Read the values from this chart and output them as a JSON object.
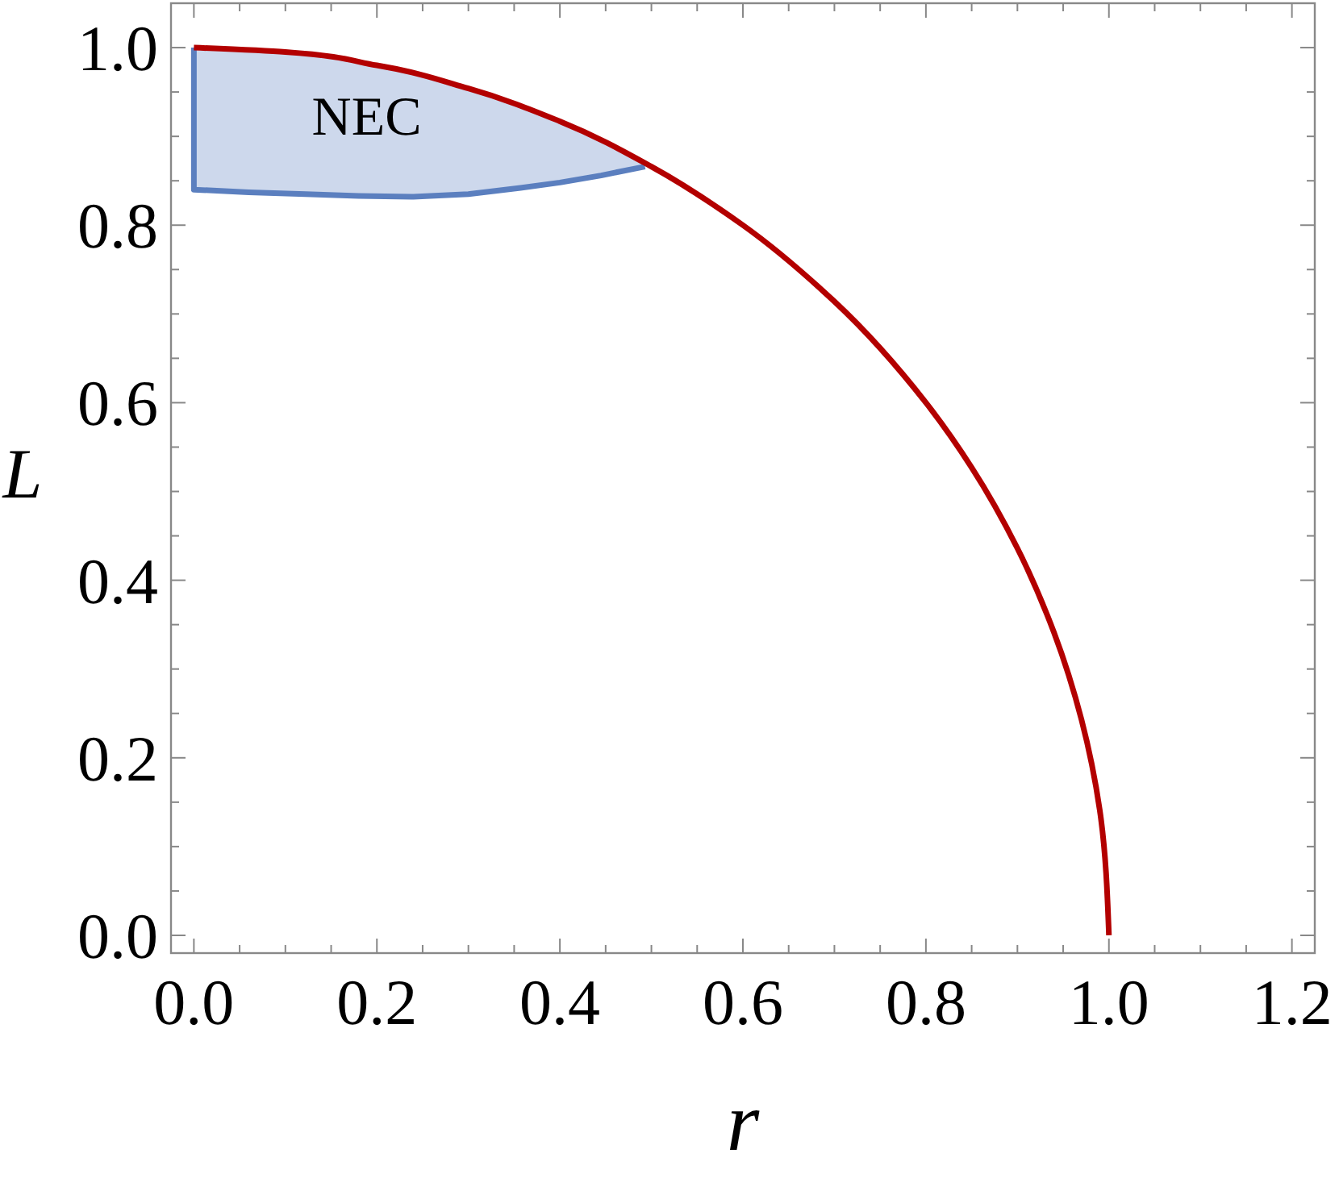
{
  "chart_data": {
    "type": "line",
    "xlabel": "r",
    "ylabel": "L",
    "xlim": [
      -0.025,
      1.225
    ],
    "ylim": [
      -0.02,
      1.05
    ],
    "xticks": [
      {
        "value": 0,
        "label": "0.0"
      },
      {
        "value": 0.05,
        "label": null
      },
      0.2,
      {
        "value": 0.1,
        "label": null
      },
      {
        "value": 0.15,
        "label": null
      },
      {
        "value": 0.25,
        "label": null
      },
      {
        "value": 0.3,
        "label": null
      },
      {
        "value": 0.35,
        "label": null
      },
      0.4,
      {
        "value": 0.45,
        "label": null
      },
      {
        "value": 0.5,
        "label": null
      },
      {
        "value": 0.55,
        "label": null
      },
      0.6,
      {
        "value": 0.65,
        "label": null
      },
      {
        "value": 0.7,
        "label": null
      },
      {
        "value": 0.75,
        "label": null
      },
      0.8,
      {
        "value": 0.85,
        "label": null
      },
      {
        "value": 0.9,
        "label": null
      },
      {
        "value": 0.95,
        "label": null
      },
      {
        "value": 1.0,
        "label": "1.0"
      },
      {
        "value": 1.05,
        "label": null
      },
      {
        "value": 1.1,
        "label": null
      },
      {
        "value": 1.15,
        "label": null
      },
      {
        "value": 1.2,
        "label": "1.2"
      }
    ],
    "yticks": [
      {
        "value": 0,
        "label": "0.0"
      },
      {
        "value": 0.05,
        "label": null
      },
      {
        "value": 0.1,
        "label": null
      },
      {
        "value": 0.15,
        "label": null
      },
      0.2,
      {
        "value": 0.25,
        "label": null
      },
      {
        "value": 0.3,
        "label": null
      },
      {
        "value": 0.35,
        "label": null
      },
      0.4,
      {
        "value": 0.45,
        "label": null
      },
      {
        "value": 0.5,
        "label": null
      },
      {
        "value": 0.55,
        "label": null
      },
      0.6,
      {
        "value": 0.65,
        "label": null
      },
      {
        "value": 0.7,
        "label": null
      },
      {
        "value": 0.75,
        "label": null
      },
      0.8,
      {
        "value": 0.85,
        "label": null
      },
      {
        "value": 0.9,
        "label": null
      },
      {
        "value": 0.95,
        "label": null
      },
      {
        "value": 1.0,
        "label": "1.0"
      }
    ],
    "grid": false,
    "legend": false,
    "series": [
      {
        "type": "line",
        "name": "NEC",
        "color": "#5b7fbf",
        "x": [
          0,
          0,
          0.06,
          0.122,
          0.18,
          0.24,
          0.3,
          0.357,
          0.4,
          0.445,
          0.493
        ],
        "values": [
          1,
          0.84,
          0.837,
          0.835,
          0.833,
          0.832,
          0.835,
          0.842,
          0.848,
          0.856,
          0.866
        ],
        "lower": [
          1,
          0.84,
          0.837,
          0.835,
          0.833,
          0.832,
          0.835,
          0.842,
          0.848,
          0.856,
          0.866
        ],
        "upper": [
          1,
          1,
          0.998,
          0.993,
          0.984,
          0.971,
          0.954,
          0.934,
          0.917,
          0.896,
          0.87
        ]
      },
      {
        "color": "#b30000",
        "x": [
          0,
          0.1,
          0.2,
          0.3,
          0.4,
          0.5,
          0.6,
          0.7,
          0.8,
          0.85,
          0.9,
          0.94,
          0.97,
          0.99,
          1.0
        ],
        "values": [
          1,
          0.995,
          0.98,
          0.954,
          0.917,
          0.866,
          0.8,
          0.714,
          0.6,
          0.527,
          0.436,
          0.341,
          0.243,
          0.141,
          0
        ]
      }
    ]
  }
}
